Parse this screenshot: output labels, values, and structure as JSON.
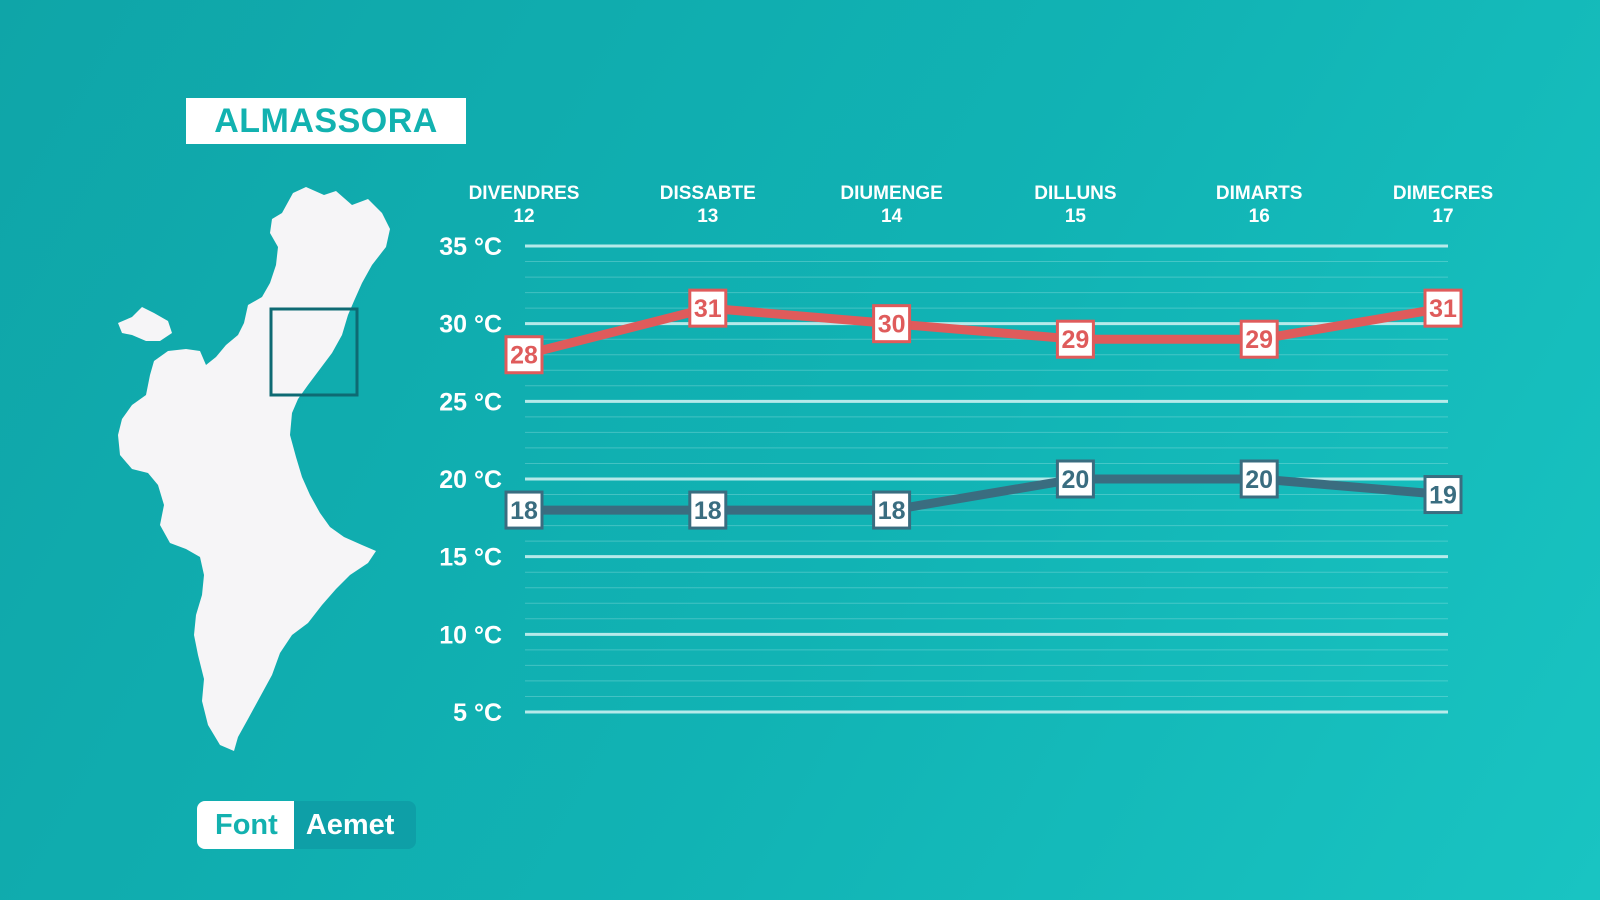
{
  "location": "ALMASSORA",
  "source": {
    "label": "Font",
    "value": "Aemet"
  },
  "colors": {
    "background": "#11b3b4",
    "max_line": "#df5b5b",
    "min_line": "#3a6d80",
    "grid": "#c9f0ef",
    "map_fill": "#f6f5f7",
    "highlight_box": "#0e6a73"
  },
  "icons": {
    "map": "valencian-community-map-icon"
  },
  "chart_data": {
    "type": "line",
    "days": [
      "DIVENDRES",
      "DISSABTE",
      "DIUMENGE",
      "DILLUNS",
      "DIMARTS",
      "DIMECRES"
    ],
    "dates": [
      "12",
      "13",
      "14",
      "15",
      "16",
      "17"
    ],
    "series": [
      {
        "key": "max",
        "values": [
          28,
          31,
          30,
          29,
          29,
          31
        ]
      },
      {
        "key": "min",
        "values": [
          18,
          18,
          18,
          20,
          20,
          19
        ]
      }
    ],
    "yticks": [
      "35 °C",
      "30 °C",
      "25 °C",
      "20 °C",
      "15 °C",
      "10 °C",
      "5 °C"
    ],
    "ytick_values": [
      35,
      30,
      25,
      20,
      15,
      10,
      5
    ],
    "ylim": [
      5,
      35
    ],
    "grid": true,
    "minor_grid_step": 1
  }
}
